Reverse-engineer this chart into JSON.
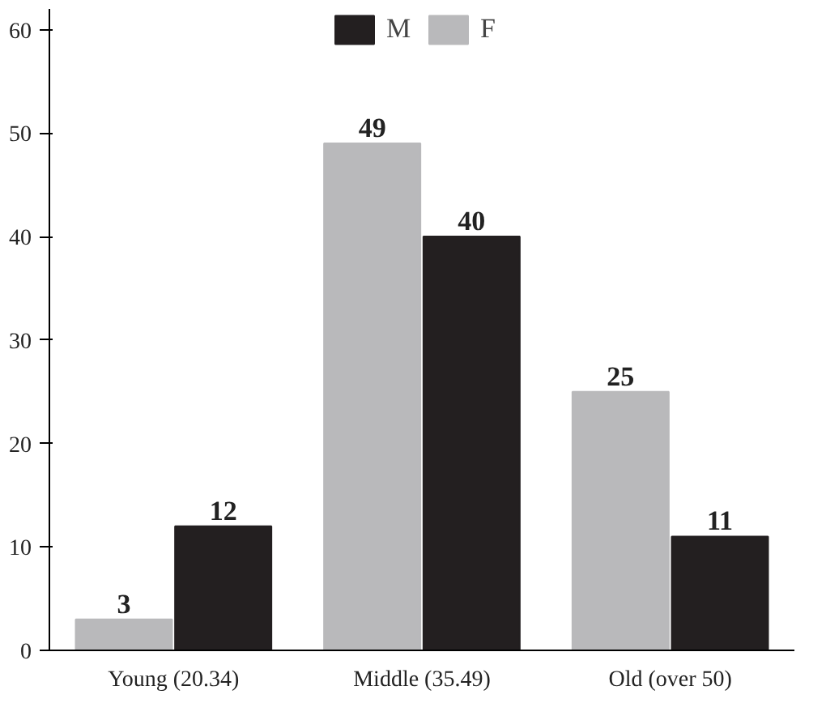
{
  "chart_data": {
    "type": "bar",
    "categories": [
      "Young (20.34)",
      "Middle (35.49)",
      "Old (over 50)"
    ],
    "series": [
      {
        "name": "F",
        "color": "#b9b9bb",
        "values": [
          3,
          49,
          25
        ]
      },
      {
        "name": "M",
        "color": "#231f20",
        "values": [
          12,
          40,
          11
        ]
      }
    ],
    "ylim": [
      0,
      62
    ],
    "yticks": [
      0,
      10,
      20,
      30,
      40,
      50,
      60
    ],
    "data_labels": true,
    "grid": false,
    "legend": "top"
  }
}
